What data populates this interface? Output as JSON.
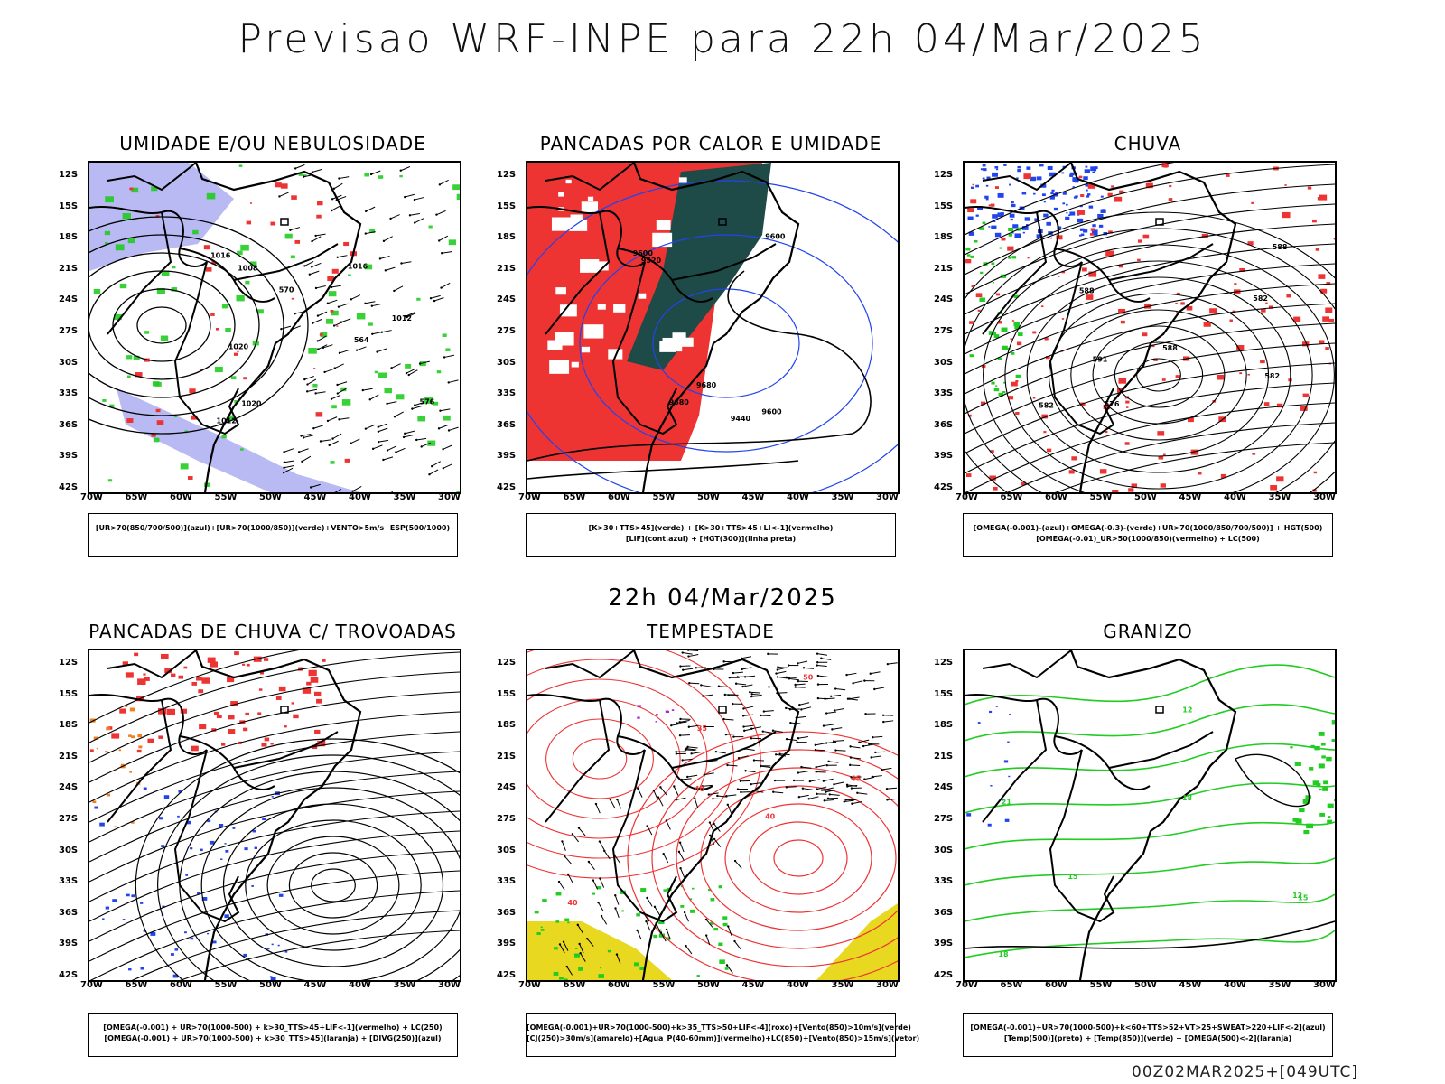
{
  "header": {
    "title": "Previsao WRF-INPE  para 22h 04/Mar/2025",
    "middle_time": "22h 04/Mar/2025",
    "footer": "00Z02MAR2025+[049UTC]"
  },
  "axes": {
    "lat_labels": [
      "12S",
      "15S",
      "18S",
      "21S",
      "24S",
      "27S",
      "30S",
      "33S",
      "36S",
      "39S",
      "42S"
    ],
    "lon_labels": [
      "70W",
      "65W",
      "60W",
      "55W",
      "50W",
      "45W",
      "40W",
      "35W",
      "30W"
    ]
  },
  "colors": {
    "red": "#ee3333",
    "green": "#22cc22",
    "blue": "#2244ee",
    "lavender": "#a8a8f0",
    "darkteal": "#1e4a48",
    "yellow": "#e8d820",
    "orange": "#f08020",
    "purple": "#aa22cc"
  },
  "panels": [
    {
      "title": "UMIDADE E/OU NEBULOSIDADE",
      "legend": [
        "[UR>70(850/700/500)](azul)+[UR>70(1000/850)](verde)+VENTO>5m/s+ESP(500/1000)"
      ],
      "labels": [
        "1012",
        "1016",
        "1020",
        "1008",
        "576",
        "570",
        "564",
        "1012",
        "1016",
        "1020"
      ]
    },
    {
      "title": "PANCADAS POR CALOR E UMIDADE",
      "legend": [
        "[K>30+TTS>45](verde) + [K>30+TTS>45+LI<-1](vermelho)",
        "[LIF](cont.azul) + [HGT(300)](linha preta)"
      ],
      "labels": [
        "9600",
        "9600",
        "9600",
        "9680",
        "9680",
        "9520",
        "9440"
      ]
    },
    {
      "title": "CHUVA",
      "legend": [
        "[OMEGA(-0.001)-(azul)+OMEGA(-0.3)-(verde)+UR>70(1000/850/700/500)] + HGT(500)",
        "[OMEGA(-0.01)_UR>50(1000/850)(vermelho) + LC(500)"
      ],
      "labels": [
        "588",
        "588",
        "582",
        "582",
        "576",
        "582",
        "588",
        "591"
      ]
    },
    {
      "title": "PANCADAS DE CHUVA C/ TROVOADAS",
      "legend": [
        "[OMEGA(-0.001) + UR>70(1000-500) + k>30_TTS>45+LIF<-1](vermelho) + LC(250)",
        "[OMEGA(-0.001) + UR>70(1000-500) + k>30_TTS>45](laranja) + [DIVG(250)](azul)"
      ],
      "labels": []
    },
    {
      "title": "TEMPESTADE",
      "legend": [
        "[OMEGA(-0.001)+UR>70(1000-500)+k>35_TTS>50+LIF<-4](roxo)+[Vento(850)>10m/s](verde)",
        "[CJ(250)>30m/s](amarelo)+[Agua_P(40-60mm)](vermelho)+LC(850)+[Vento(850)>15m/s](vetor)"
      ],
      "labels": [
        "40",
        "40",
        "45",
        "40",
        "50",
        "35"
      ]
    },
    {
      "title": "GRANIZO",
      "legend": [
        "[OMEGA(-0.001)+UR>70(1000-500)+k<60+TTS>52+VT>25+SWEAT>220+LIF<-2](azul)",
        "[Temp(500)](preto) + [Temp(850)](verde) + [OMEGA(500)<-2](laranja)"
      ],
      "labels": [
        "21",
        "18",
        "15",
        "12",
        "18",
        "15",
        "12"
      ]
    }
  ]
}
